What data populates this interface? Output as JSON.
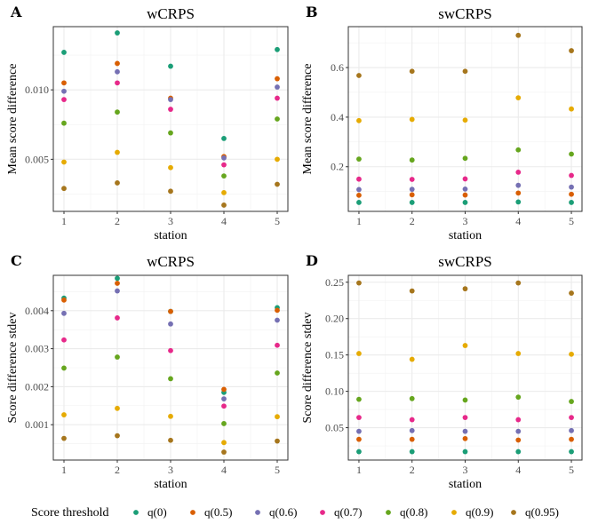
{
  "legend": {
    "title": "Score threshold",
    "placement": "bottom",
    "entries": [
      {
        "label": "q(0)",
        "color": "#1b9e77"
      },
      {
        "label": "q(0.5)",
        "color": "#d95f02"
      },
      {
        "label": "q(0.6)",
        "color": "#7570b3"
      },
      {
        "label": "q(0.7)",
        "color": "#e7298a"
      },
      {
        "label": "q(0.8)",
        "color": "#66a61e"
      },
      {
        "label": "q(0.9)",
        "color": "#e6ab02"
      },
      {
        "label": "q(0.95)",
        "color": "#a6761d"
      }
    ]
  },
  "chart_data": [
    {
      "panel": "A",
      "type": "scatter",
      "title": "wCRPS",
      "xlabel": "station",
      "ylabel": "Mean score difference",
      "x": [
        1,
        2,
        3,
        4,
        5
      ],
      "xlim": [
        0.8,
        5.2
      ],
      "ylim": [
        0.00125,
        0.01455
      ],
      "yticks": [
        0.005,
        0.01
      ],
      "ytick_labels": [
        "0.005",
        "0.010"
      ],
      "grid": true,
      "series": [
        {
          "name": "q(0)",
          "values": [
            0.0127,
            0.0141,
            0.0117,
            0.0065,
            0.0129
          ]
        },
        {
          "name": "q(0.5)",
          "values": [
            0.0105,
            0.0119,
            0.0094,
            0.0052,
            0.0108
          ]
        },
        {
          "name": "q(0.6)",
          "values": [
            0.0099,
            0.0113,
            0.0093,
            0.0051,
            0.0102
          ]
        },
        {
          "name": "q(0.7)",
          "values": [
            0.0093,
            0.0105,
            0.0086,
            0.0046,
            0.0094
          ]
        },
        {
          "name": "q(0.8)",
          "values": [
            0.0076,
            0.0084,
            0.0069,
            0.0038,
            0.0079
          ]
        },
        {
          "name": "q(0.9)",
          "values": [
            0.0048,
            0.0055,
            0.0044,
            0.0026,
            0.005
          ]
        },
        {
          "name": "q(0.95)",
          "values": [
            0.0029,
            0.0033,
            0.0027,
            0.0017,
            0.0032
          ]
        }
      ]
    },
    {
      "panel": "B",
      "type": "scatter",
      "title": "swCRPS",
      "xlabel": "station",
      "ylabel": "Mean score difference",
      "x": [
        1,
        2,
        3,
        4,
        5
      ],
      "xlim": [
        0.8,
        5.2
      ],
      "ylim": [
        0.02,
        0.765
      ],
      "yticks": [
        0.2,
        0.4,
        0.6
      ],
      "ytick_labels": [
        "0.2",
        "0.4",
        "0.6"
      ],
      "grid": true,
      "series": [
        {
          "name": "q(0)",
          "values": [
            0.056,
            0.056,
            0.056,
            0.058,
            0.056
          ]
        },
        {
          "name": "q(0.5)",
          "values": [
            0.085,
            0.087,
            0.086,
            0.094,
            0.089
          ]
        },
        {
          "name": "q(0.6)",
          "values": [
            0.108,
            0.109,
            0.11,
            0.125,
            0.118
          ]
        },
        {
          "name": "q(0.7)",
          "values": [
            0.15,
            0.149,
            0.151,
            0.178,
            0.165
          ]
        },
        {
          "name": "q(0.8)",
          "values": [
            0.231,
            0.227,
            0.234,
            0.268,
            0.251
          ]
        },
        {
          "name": "q(0.9)",
          "values": [
            0.386,
            0.391,
            0.388,
            0.478,
            0.433
          ]
        },
        {
          "name": "q(0.95)",
          "values": [
            0.568,
            0.585,
            0.585,
            0.73,
            0.668
          ]
        }
      ]
    },
    {
      "panel": "C",
      "type": "scatter",
      "title": "wCRPS",
      "xlabel": "station",
      "ylabel": "Score difference stdev",
      "x": [
        1,
        2,
        3,
        4,
        5
      ],
      "xlim": [
        0.8,
        5.2
      ],
      "ylim": [
        7e-05,
        0.00493
      ],
      "yticks": [
        0.001,
        0.002,
        0.003,
        0.004
      ],
      "ytick_labels": [
        "0.001",
        "0.002",
        "0.003",
        "0.004"
      ],
      "grid": true,
      "series": [
        {
          "name": "q(0)",
          "values": [
            0.00433,
            0.00485,
            0.00398,
            0.00185,
            0.00408
          ]
        },
        {
          "name": "q(0.5)",
          "values": [
            0.00428,
            0.00472,
            0.00398,
            0.00193,
            0.00401
          ]
        },
        {
          "name": "q(0.6)",
          "values": [
            0.00393,
            0.00452,
            0.00365,
            0.00168,
            0.00375
          ]
        },
        {
          "name": "q(0.7)",
          "values": [
            0.00323,
            0.00381,
            0.00295,
            0.00149,
            0.00309
          ]
        },
        {
          "name": "q(0.8)",
          "values": [
            0.00249,
            0.00278,
            0.00221,
            0.00103,
            0.00236
          ]
        },
        {
          "name": "q(0.9)",
          "values": [
            0.00126,
            0.00143,
            0.00122,
            0.00053,
            0.00121
          ]
        },
        {
          "name": "q(0.95)",
          "values": [
            0.00064,
            0.00071,
            0.00059,
            0.00028,
            0.00057
          ]
        }
      ]
    },
    {
      "panel": "D",
      "type": "scatter",
      "title": "swCRPS",
      "xlabel": "station",
      "ylabel": "Score difference stdev",
      "x": [
        1,
        2,
        3,
        4,
        5
      ],
      "xlim": [
        0.8,
        5.2
      ],
      "ylim": [
        0.0055,
        0.2595
      ],
      "yticks": [
        0.05,
        0.1,
        0.15,
        0.2,
        0.25
      ],
      "ytick_labels": [
        "0.05",
        "0.10",
        "0.15",
        "0.20",
        "0.25"
      ],
      "grid": true,
      "series": [
        {
          "name": "q(0)",
          "values": [
            0.017,
            0.017,
            0.017,
            0.017,
            0.017
          ]
        },
        {
          "name": "q(0.5)",
          "values": [
            0.034,
            0.034,
            0.035,
            0.033,
            0.034
          ]
        },
        {
          "name": "q(0.6)",
          "values": [
            0.045,
            0.046,
            0.045,
            0.045,
            0.046
          ]
        },
        {
          "name": "q(0.7)",
          "values": [
            0.064,
            0.061,
            0.064,
            0.061,
            0.064
          ]
        },
        {
          "name": "q(0.8)",
          "values": [
            0.089,
            0.09,
            0.088,
            0.092,
            0.086
          ]
        },
        {
          "name": "q(0.9)",
          "values": [
            0.152,
            0.144,
            0.163,
            0.152,
            0.151
          ]
        },
        {
          "name": "q(0.95)",
          "values": [
            0.249,
            0.238,
            0.241,
            0.249,
            0.235
          ]
        }
      ]
    }
  ]
}
